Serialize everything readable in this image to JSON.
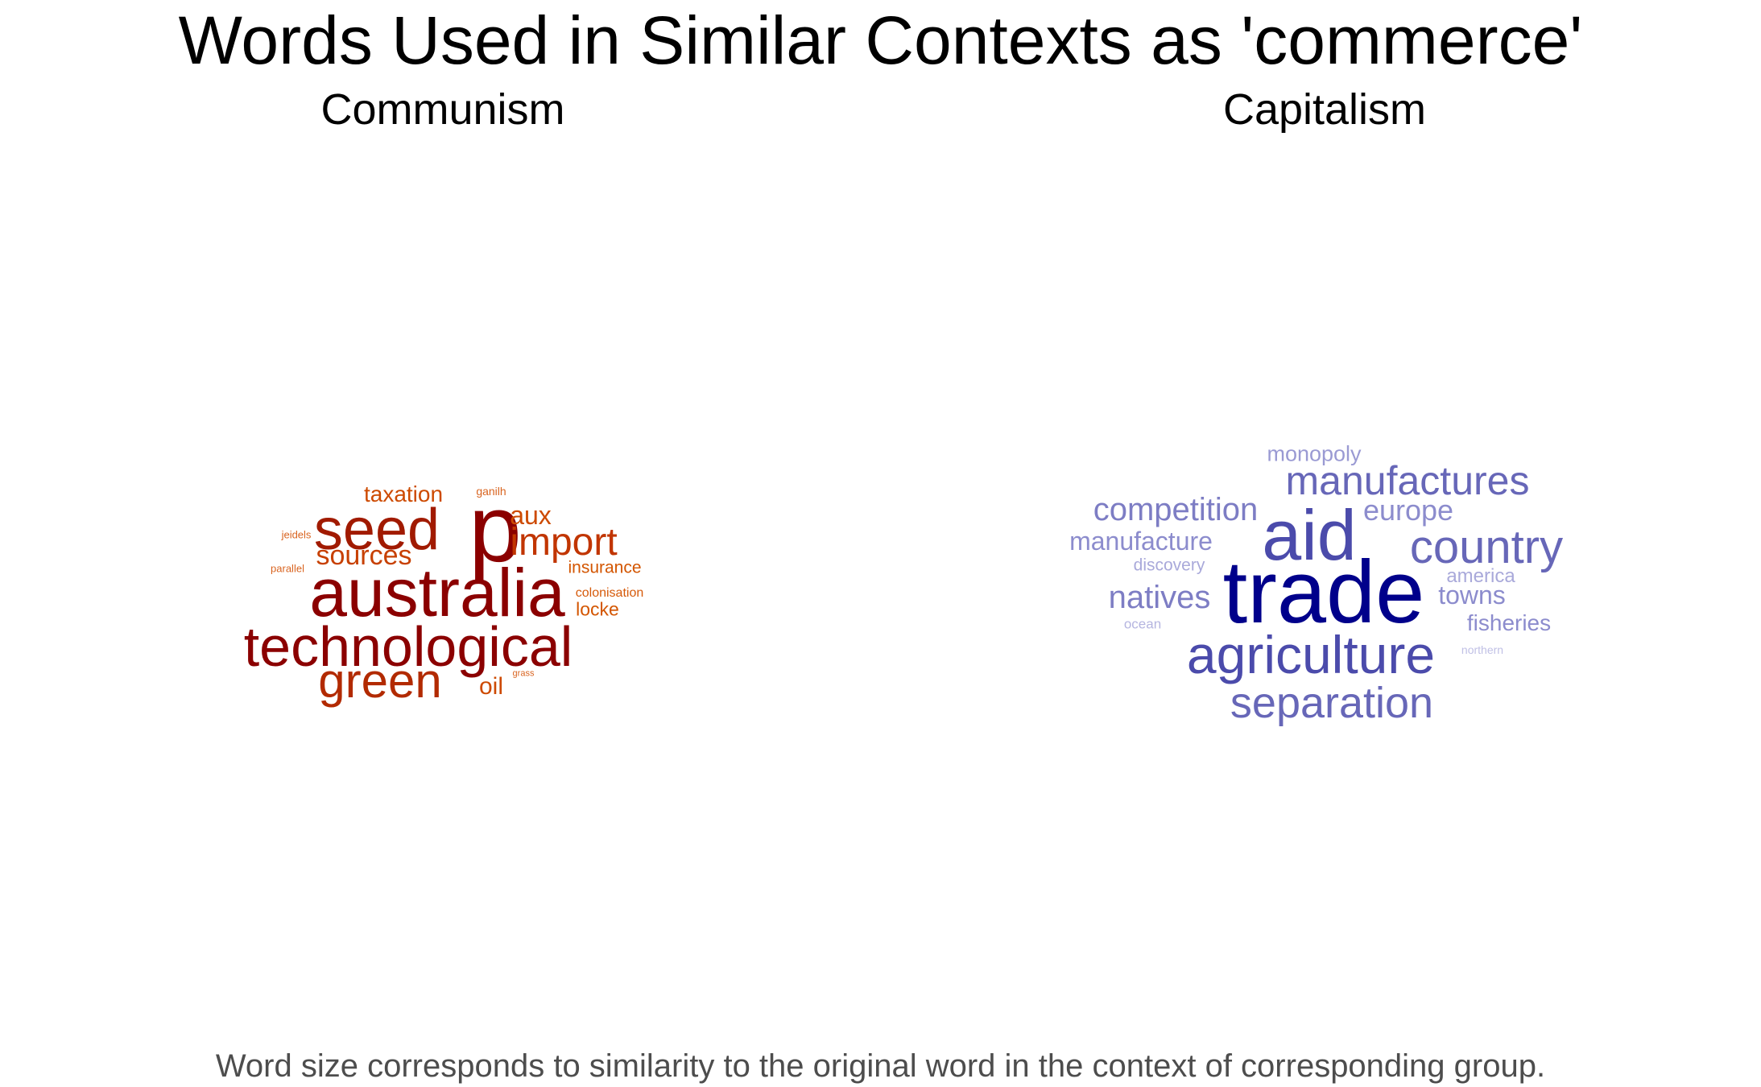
{
  "title": "Words Used in Similar Contexts as 'commerce'",
  "panels": {
    "left": {
      "heading": "Communism",
      "words": [
        {
          "text": "australia",
          "color": "#8b0000"
        },
        {
          "text": "technological",
          "color": "#8b0000"
        },
        {
          "text": "p",
          "color": "#8b0000"
        },
        {
          "text": "seed",
          "color": "#a11a00"
        },
        {
          "text": "green",
          "color": "#b22a00"
        },
        {
          "text": "import",
          "color": "#c13500"
        },
        {
          "text": "sources",
          "color": "#c74000"
        },
        {
          "text": "aux",
          "color": "#cd4a00"
        },
        {
          "text": "taxation",
          "color": "#cd4a00"
        },
        {
          "text": "oil",
          "color": "#cd4a00"
        },
        {
          "text": "insurance",
          "color": "#d35500"
        },
        {
          "text": "locke",
          "color": "#d35500"
        },
        {
          "text": "colonisation",
          "color": "#d65a0a"
        },
        {
          "text": "ganilh",
          "color": "#d96420"
        },
        {
          "text": "jeidels",
          "color": "#d96420"
        },
        {
          "text": "parallel",
          "color": "#d96420"
        },
        {
          "text": "grass",
          "color": "#d96420"
        }
      ]
    },
    "right": {
      "heading": "Capitalism",
      "words": [
        {
          "text": "trade",
          "color": "#00008b"
        },
        {
          "text": "aid",
          "color": "#4b4bab"
        },
        {
          "text": "agriculture",
          "color": "#4b4bab"
        },
        {
          "text": "country",
          "color": "#6767b8"
        },
        {
          "text": "manufactures",
          "color": "#6767b8"
        },
        {
          "text": "separation",
          "color": "#6767b8"
        },
        {
          "text": "competition",
          "color": "#7d7dc4"
        },
        {
          "text": "natives",
          "color": "#7d7dc4"
        },
        {
          "text": "europe",
          "color": "#8c8ccd"
        },
        {
          "text": "manufacture",
          "color": "#8c8ccd"
        },
        {
          "text": "towns",
          "color": "#8c8ccd"
        },
        {
          "text": "fisheries",
          "color": "#8c8ccd"
        },
        {
          "text": "monopoly",
          "color": "#9a9ad3"
        },
        {
          "text": "america",
          "color": "#a9a9da"
        },
        {
          "text": "discovery",
          "color": "#a9a9da"
        },
        {
          "text": "ocean",
          "color": "#b5b5e0"
        },
        {
          "text": "northern",
          "color": "#c0c0e5"
        }
      ]
    }
  },
  "footer": "Word size corresponds to similarity to the original word in the context of corresponding group."
}
